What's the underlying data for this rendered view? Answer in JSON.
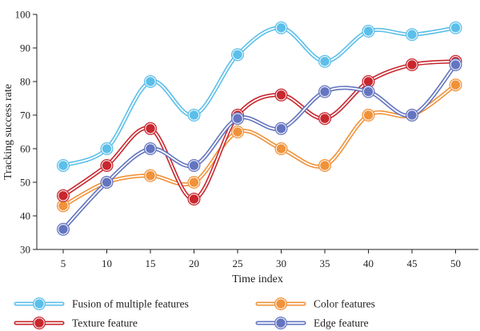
{
  "chart_data": {
    "type": "line",
    "title": "",
    "xlabel": "Time index",
    "ylabel": "Tracking success rate",
    "x": [
      5,
      10,
      15,
      20,
      25,
      30,
      35,
      40,
      45,
      50
    ],
    "x_tick_labels": [
      "5",
      "10",
      "15",
      "20",
      "25",
      "30",
      "35",
      "40",
      "45",
      "50"
    ],
    "ylim": [
      30,
      100
    ],
    "y_ticks": [
      30,
      40,
      50,
      60,
      70,
      80,
      90,
      100
    ],
    "y_tick_labels": [
      "30",
      "40",
      "50",
      "60",
      "70",
      "80",
      "90",
      "100"
    ],
    "grid": false,
    "smooth": true,
    "legend_position": "bottom",
    "series": [
      {
        "name": "Fusion of multiple features",
        "color": "#5bbfe9",
        "values": [
          55,
          60,
          80,
          70,
          88,
          96,
          86,
          95,
          94,
          96
        ]
      },
      {
        "name": "Color features",
        "color": "#f0923a",
        "values": [
          43,
          50,
          52,
          50,
          65,
          60,
          55,
          70,
          70,
          79
        ]
      },
      {
        "name": "Texture feature",
        "color": "#c8272e",
        "values": [
          46,
          55,
          66,
          45,
          70,
          76,
          69,
          80,
          85,
          86
        ]
      },
      {
        "name": "Edge feature",
        "color": "#6475c0",
        "values": [
          36,
          50,
          60,
          55,
          69,
          66,
          77,
          77,
          70,
          85
        ]
      }
    ]
  }
}
